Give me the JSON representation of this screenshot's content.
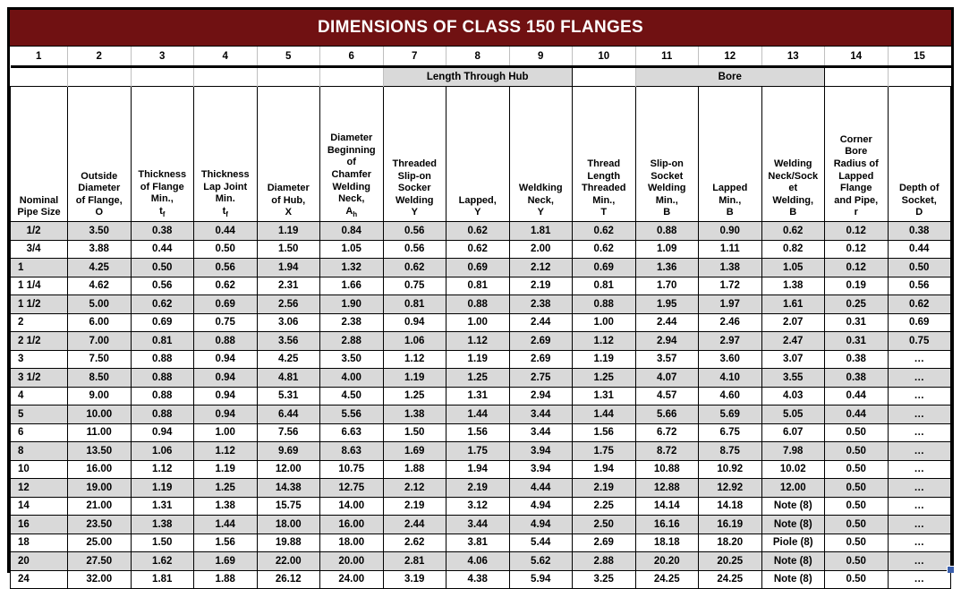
{
  "title": "DIMENSIONS OF CLASS 150 FLANGES",
  "colors": {
    "title_bg": "#701112",
    "title_text": "#ffffff",
    "stripe_gray": "#d9d9d9",
    "grid_black": "#000000",
    "light_grid": "#bfbfbf",
    "fill_handle_blue": "#3a5fad"
  },
  "column_numbers": [
    "1",
    "2",
    "3",
    "4",
    "5",
    "6",
    "7",
    "8",
    "9",
    "10",
    "11",
    "12",
    "13",
    "14",
    "15"
  ],
  "band_row": [
    {
      "label": "",
      "span": 6,
      "shaded": false
    },
    {
      "label": "Length Through Hub",
      "span": 3,
      "shaded": true
    },
    {
      "label": "",
      "span": 1,
      "shaded": false
    },
    {
      "label": "Bore",
      "span": 3,
      "shaded": true
    },
    {
      "label": "",
      "span": 2,
      "shaded": false
    }
  ],
  "headers": [
    {
      "text": "Nominal\nPipe Size",
      "symbol": "",
      "sub": ""
    },
    {
      "text": "Outside\nDiameter\nof Flange,",
      "symbol": "O",
      "sub": ""
    },
    {
      "text": "Thickness\nof Flange\nMin.,",
      "symbol": "t",
      "sub": "f"
    },
    {
      "text": "Thickness\nLap Joint\nMin.",
      "symbol": "t",
      "sub": "f"
    },
    {
      "text": "Diameter\nof Hub,",
      "symbol": "X",
      "sub": ""
    },
    {
      "text": "Diameter\nBeginning\nof\nChamfer\nWelding\nNeck,",
      "symbol": "A",
      "sub": "h"
    },
    {
      "text": "Threaded\nSlip-on\nSocker\nWelding",
      "symbol": "Y",
      "sub": ""
    },
    {
      "text": "Lapped,",
      "symbol": "Y",
      "sub": ""
    },
    {
      "text": "Weldking\nNeck,",
      "symbol": "Y",
      "sub": ""
    },
    {
      "text": "Thread\nLength\nThreaded\nMin.,",
      "symbol": "T",
      "sub": ""
    },
    {
      "text": "Slip-on\nSocket\nWelding\nMin.,",
      "symbol": "B",
      "sub": ""
    },
    {
      "text": "Lapped\nMin.,",
      "symbol": "B",
      "sub": ""
    },
    {
      "text": "Welding\nNeck/Sock\net\nWelding,",
      "symbol": "B",
      "sub": ""
    },
    {
      "text": "Corner\nBore\nRadius of\nLapped\nFlange\nand Pipe,",
      "symbol": "r",
      "sub": ""
    },
    {
      "text": "Depth of\nSocket,",
      "symbol": "D",
      "sub": ""
    }
  ],
  "rows": [
    [
      "   1/2",
      "3.50",
      "0.38",
      "0.44",
      "1.19",
      "0.84",
      "0.56",
      "0.62",
      "1.81",
      "0.62",
      "0.88",
      "0.90",
      "0.62",
      "0.12",
      "0.38"
    ],
    [
      "   3/4",
      "3.88",
      "0.44",
      "0.50",
      "1.50",
      "1.05",
      "0.56",
      "0.62",
      "2.00",
      "0.62",
      "1.09",
      "1.11",
      "0.82",
      "0.12",
      "0.44"
    ],
    [
      "1",
      "4.25",
      "0.50",
      "0.56",
      "1.94",
      "1.32",
      "0.62",
      "0.69",
      "2.12",
      "0.69",
      "1.36",
      "1.38",
      "1.05",
      "0.12",
      "0.50"
    ],
    [
      "1 1/4",
      "4.62",
      "0.56",
      "0.62",
      "2.31",
      "1.66",
      "0.75",
      "0.81",
      "2.19",
      "0.81",
      "1.70",
      "1.72",
      "1.38",
      "0.19",
      "0.56"
    ],
    [
      "1 1/2",
      "5.00",
      "0.62",
      "0.69",
      "2.56",
      "1.90",
      "0.81",
      "0.88",
      "2.38",
      "0.88",
      "1.95",
      "1.97",
      "1.61",
      "0.25",
      "0.62"
    ],
    [
      "2",
      "6.00",
      "0.69",
      "0.75",
      "3.06",
      "2.38",
      "0.94",
      "1.00",
      "2.44",
      "1.00",
      "2.44",
      "2.46",
      "2.07",
      "0.31",
      "0.69"
    ],
    [
      "2 1/2",
      "7.00",
      "0.81",
      "0.88",
      "3.56",
      "2.88",
      "1.06",
      "1.12",
      "2.69",
      "1.12",
      "2.94",
      "2.97",
      "2.47",
      "0.31",
      "0.75"
    ],
    [
      "3",
      "7.50",
      "0.88",
      "0.94",
      "4.25",
      "3.50",
      "1.12",
      "1.19",
      "2.69",
      "1.19",
      "3.57",
      "3.60",
      "3.07",
      "0.38",
      "…"
    ],
    [
      "3 1/2",
      "8.50",
      "0.88",
      "0.94",
      "4.81",
      "4.00",
      "1.19",
      "1.25",
      "2.75",
      "1.25",
      "4.07",
      "4.10",
      "3.55",
      "0.38",
      "…"
    ],
    [
      "4",
      "9.00",
      "0.88",
      "0.94",
      "5.31",
      "4.50",
      "1.25",
      "1.31",
      "2.94",
      "1.31",
      "4.57",
      "4.60",
      "4.03",
      "0.44",
      "…"
    ],
    [
      "5",
      "10.00",
      "0.88",
      "0.94",
      "6.44",
      "5.56",
      "1.38",
      "1.44",
      "3.44",
      "1.44",
      "5.66",
      "5.69",
      "5.05",
      "0.44",
      "…"
    ],
    [
      "6",
      "11.00",
      "0.94",
      "1.00",
      "7.56",
      "6.63",
      "1.50",
      "1.56",
      "3.44",
      "1.56",
      "6.72",
      "6.75",
      "6.07",
      "0.50",
      "…"
    ],
    [
      "8",
      "13.50",
      "1.06",
      "1.12",
      "9.69",
      "8.63",
      "1.69",
      "1.75",
      "3.94",
      "1.75",
      "8.72",
      "8.75",
      "7.98",
      "0.50",
      "…"
    ],
    [
      "10",
      "16.00",
      "1.12",
      "1.19",
      "12.00",
      "10.75",
      "1.88",
      "1.94",
      "3.94",
      "1.94",
      "10.88",
      "10.92",
      "10.02",
      "0.50",
      "…"
    ],
    [
      "12",
      "19.00",
      "1.19",
      "1.25",
      "14.38",
      "12.75",
      "2.12",
      "2.19",
      "4.44",
      "2.19",
      "12.88",
      "12.92",
      "12.00",
      "0.50",
      "…"
    ],
    [
      "14",
      "21.00",
      "1.31",
      "1.38",
      "15.75",
      "14.00",
      "2.19",
      "3.12",
      "4.94",
      "2.25",
      "14.14",
      "14.18",
      "Note (8)",
      "0.50",
      "…"
    ],
    [
      "16",
      "23.50",
      "1.38",
      "1.44",
      "18.00",
      "16.00",
      "2.44",
      "3.44",
      "4.94",
      "2.50",
      "16.16",
      "16.19",
      "Note (8)",
      "0.50",
      "…"
    ],
    [
      "18",
      "25.00",
      "1.50",
      "1.56",
      "19.88",
      "18.00",
      "2.62",
      "3.81",
      "5.44",
      "2.69",
      "18.18",
      "18.20",
      "Piole (8)",
      "0.50",
      "…"
    ],
    [
      "20",
      "27.50",
      "1.62",
      "1.69",
      "22.00",
      "20.00",
      "2.81",
      "4.06",
      "5.62",
      "2.88",
      "20.20",
      "20.25",
      "Note (8)",
      "0.50",
      "…"
    ],
    [
      "24",
      "32.00",
      "1.81",
      "1.88",
      "26.12",
      "24.00",
      "3.19",
      "4.38",
      "5.94",
      "3.25",
      "24.25",
      "24.25",
      "Note (8)",
      "0.50",
      "…"
    ]
  ]
}
